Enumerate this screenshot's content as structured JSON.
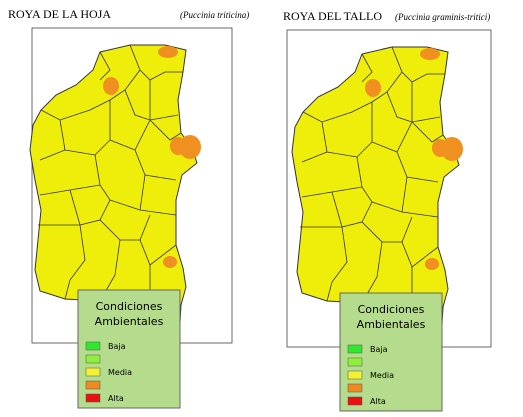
{
  "panels": [
    {
      "title": "ROYA DE LA HOJA",
      "subtitle": "(Puccinia triticina)",
      "legend": {
        "title": [
          "Condiciones",
          "Ambientales"
        ],
        "items": [
          {
            "color": "#2ee82e",
            "label": "Baja"
          },
          {
            "color": "#8ef03a"
          },
          {
            "color": "#f2f230",
            "label": "Media"
          },
          {
            "color": "#f08a1e"
          },
          {
            "color": "#e81010",
            "label": "Alta"
          }
        ]
      }
    },
    {
      "title": "ROYA DEL TALLO",
      "subtitle": "(Puccinia graminis-tritici)",
      "legend": {
        "title": [
          "Condiciones",
          "Ambientales"
        ],
        "items": [
          {
            "color": "#2ee82e",
            "label": "Baja"
          },
          {
            "color": "#8ef03a"
          },
          {
            "color": "#f2f230",
            "label": "Media"
          },
          {
            "color": "#f08a1e"
          },
          {
            "color": "#e81010",
            "label": "Alta"
          }
        ]
      }
    }
  ]
}
